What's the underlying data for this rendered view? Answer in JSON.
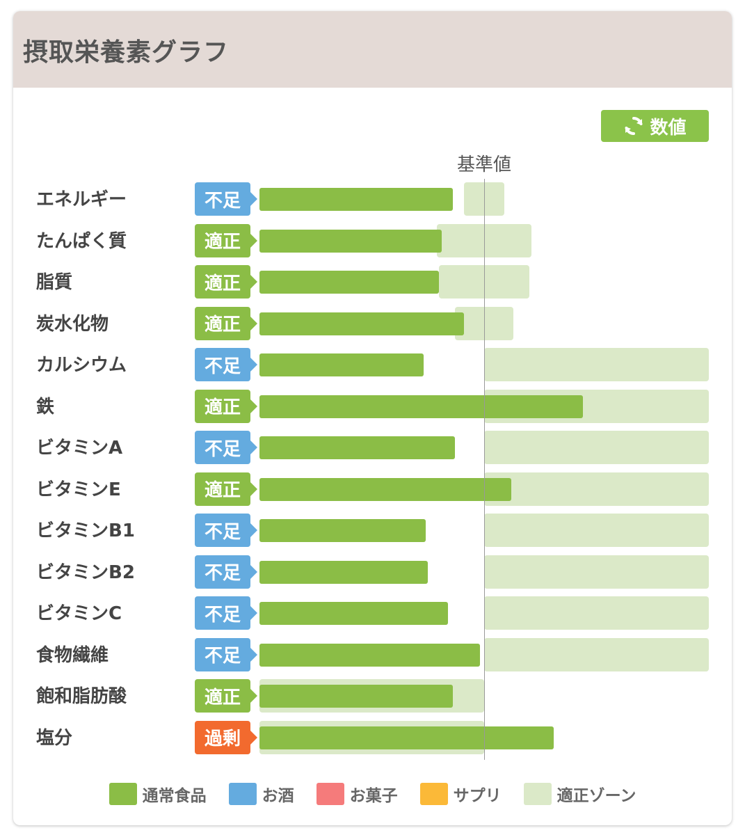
{
  "title": "摂取栄養素グラフ",
  "toggle_button": {
    "label": "数値",
    "icon": "refresh-icon"
  },
  "colors": {
    "header_bg": "#e4dad6",
    "bar": "#8bbd46",
    "zone": "#dbe9c8",
    "status_low": "#64abdf",
    "status_ok": "#8bbd46",
    "status_high": "#f26a2e",
    "button": "#8bc34a"
  },
  "chart_data": {
    "type": "bar",
    "orientation": "horizontal",
    "baseline_label": "基準値",
    "baseline_value": 100,
    "x_range": [
      0,
      200
    ],
    "categories": [
      "エネルギー",
      "たんぱく質",
      "脂質",
      "炭水化物",
      "カルシウム",
      "鉄",
      "ビタミンA",
      "ビタミンE",
      "ビタミンB1",
      "ビタミンB2",
      "ビタミンC",
      "食物繊維",
      "飽和脂肪酸",
      "塩分"
    ],
    "status": [
      "不足",
      "適正",
      "適正",
      "適正",
      "不足",
      "適正",
      "不足",
      "適正",
      "不足",
      "不足",
      "不足",
      "不足",
      "適正",
      "過剰"
    ],
    "series": [
      {
        "name": "通常食品",
        "values": [
          86,
          81,
          80,
          91,
          73,
          144,
          87,
          112,
          74,
          75,
          84,
          98,
          86,
          131
        ]
      }
    ],
    "optimal_zone": [
      [
        91,
        109
      ],
      [
        79,
        121
      ],
      [
        80,
        120
      ],
      [
        87,
        113
      ],
      [
        100,
        200
      ],
      [
        100,
        200
      ],
      [
        100,
        200
      ],
      [
        100,
        200
      ],
      [
        100,
        200
      ],
      [
        100,
        200
      ],
      [
        100,
        200
      ],
      [
        100,
        200
      ],
      [
        0,
        100
      ],
      [
        0,
        100
      ]
    ],
    "legend": [
      {
        "label": "通常食品",
        "color": "#8bbd46"
      },
      {
        "label": "お酒",
        "color": "#64abdf"
      },
      {
        "label": "お菓子",
        "color": "#f57b7b"
      },
      {
        "label": "サプリ",
        "color": "#fbb938"
      },
      {
        "label": "適正ゾーン",
        "color": "#dbe9c8"
      }
    ]
  }
}
